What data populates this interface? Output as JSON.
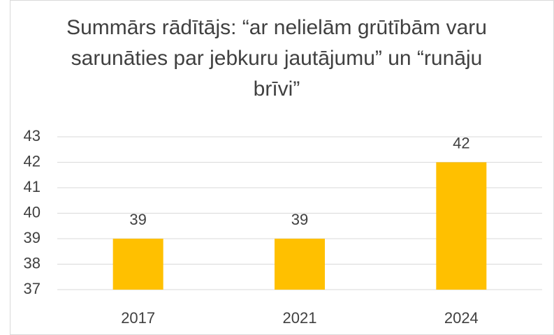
{
  "chart_data": {
    "type": "bar",
    "title": "Summārs rādītājs: “ar nelielām grūtībām varu sarunāties par jebkuru jautājumu” un “runāju brīvi”",
    "categories": [
      "2017",
      "2021",
      "2024"
    ],
    "values": [
      39,
      39,
      42
    ],
    "color": "#ffc000",
    "ylim": [
      37,
      43
    ],
    "yticks": [
      37,
      38,
      39,
      40,
      41,
      42,
      43
    ],
    "grid": true
  }
}
